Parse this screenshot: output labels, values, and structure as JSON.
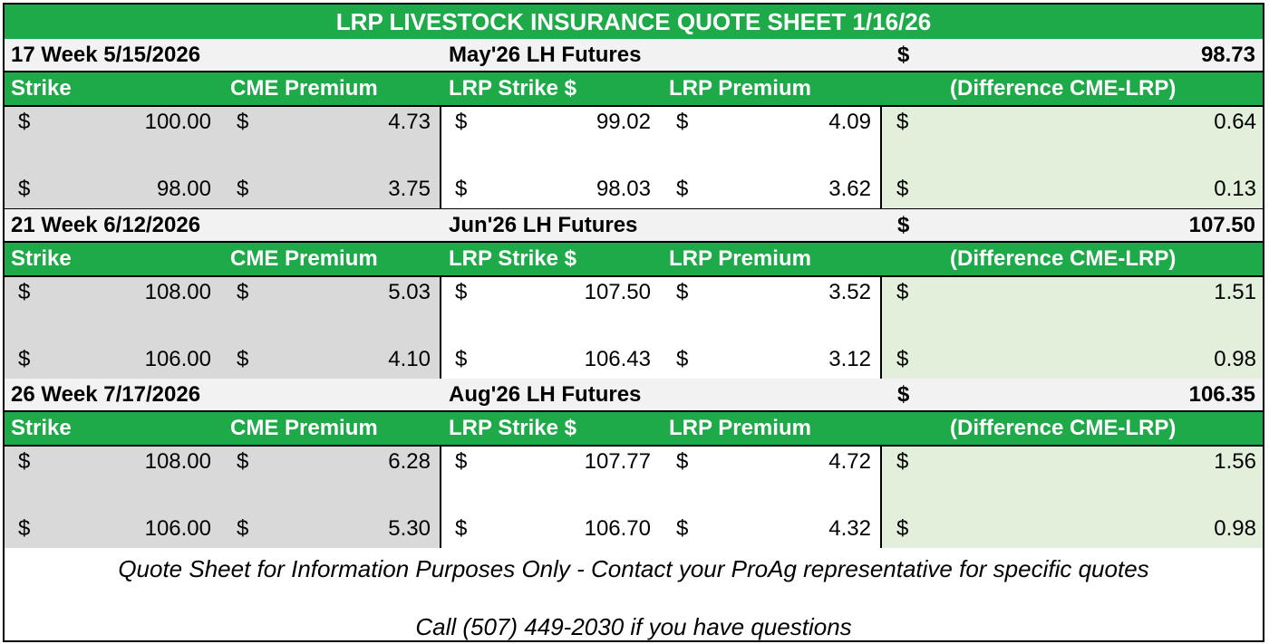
{
  "title": "LRP LIVESTOCK INSURANCE QUOTE SHEET 1/16/26",
  "column_headers": {
    "strike": "Strike",
    "cme_premium": "CME Premium",
    "lrp_strike": "LRP Strike $",
    "lrp_premium": "LRP Premium",
    "difference": "(Difference CME-LRP)"
  },
  "currency": "$",
  "sections": [
    {
      "week_label": "17 Week 5/15/2026",
      "futures_label": "May'26 LH Futures",
      "futures_value": "98.73",
      "rows": [
        {
          "strike": "100.00",
          "cme_premium": "4.73",
          "lrp_strike": "99.02",
          "lrp_premium": "4.09",
          "difference": "0.64"
        },
        {
          "strike": "98.00",
          "cme_premium": "3.75",
          "lrp_strike": "98.03",
          "lrp_premium": "3.62",
          "difference": "0.13"
        }
      ]
    },
    {
      "week_label": "21 Week 6/12/2026",
      "futures_label": "Jun'26 LH Futures",
      "futures_value": "107.50",
      "rows": [
        {
          "strike": "108.00",
          "cme_premium": "5.03",
          "lrp_strike": "107.50",
          "lrp_premium": "3.52",
          "difference": "1.51"
        },
        {
          "strike": "106.00",
          "cme_premium": "4.10",
          "lrp_strike": "106.43",
          "lrp_premium": "3.12",
          "difference": "0.98"
        }
      ]
    },
    {
      "week_label": "26 Week 7/17/2026",
      "futures_label": "Aug'26 LH Futures",
      "futures_value": "106.35",
      "rows": [
        {
          "strike": "108.00",
          "cme_premium": "6.28",
          "lrp_strike": "107.77",
          "lrp_premium": "4.72",
          "difference": "1.56"
        },
        {
          "strike": "106.00",
          "cme_premium": "5.30",
          "lrp_strike": "106.70",
          "lrp_premium": "4.32",
          "difference": "0.98"
        }
      ]
    }
  ],
  "footer": {
    "disclaimer": "Quote Sheet for Information Purposes Only - Contact your ProAg representative for specific quotes",
    "contact": "Call (507) 449-2030 if you have questions"
  },
  "colors": {
    "header_green": "#1faa4a",
    "strike_block_grey": "#d9d9d9",
    "difference_block_green": "#e2efda",
    "section_header_grey": "#f2f2f2"
  }
}
